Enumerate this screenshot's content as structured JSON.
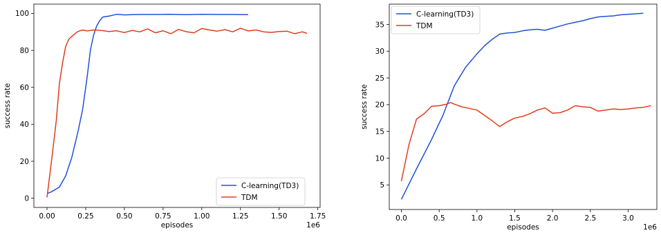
{
  "chart_data": [
    {
      "type": "line",
      "xlabel": "episodes",
      "ylabel": "success rate",
      "x_offset_label": "1e6",
      "xlim": [
        -0.085,
        1.765
      ],
      "ylim": [
        -5,
        105
      ],
      "xticks": [
        0.0,
        0.25,
        0.5,
        0.75,
        1.0,
        1.25,
        1.5,
        1.75
      ],
      "xtick_labels": [
        "0.00",
        "0.25",
        "0.50",
        "0.75",
        "1.00",
        "1.25",
        "1.50",
        "1.75"
      ],
      "yticks": [
        0,
        20,
        40,
        60,
        80,
        100
      ],
      "ytick_labels": [
        "0",
        "20",
        "40",
        "60",
        "80",
        "100"
      ],
      "grid": false,
      "legend_position": "lower-right",
      "series": [
        {
          "name": "C-learning(TD3)",
          "color": "#1f4fd8",
          "x": [
            0.0,
            0.03,
            0.08,
            0.12,
            0.16,
            0.2,
            0.23,
            0.26,
            0.28,
            0.3,
            0.32,
            0.34,
            0.36,
            0.4,
            0.45,
            0.5,
            0.55,
            0.6,
            0.7,
            0.8,
            0.9,
            1.0,
            1.1,
            1.2,
            1.3
          ],
          "y": [
            2.5,
            3.5,
            6,
            12,
            22,
            36,
            48,
            66,
            80,
            88,
            93,
            96,
            98,
            98.5,
            99.5,
            99.2,
            99.3,
            99.4,
            99.4,
            99.5,
            99.3,
            99.5,
            99.4,
            99.4,
            99.3
          ]
        },
        {
          "name": "TDM",
          "color": "#e03c1c",
          "x": [
            0.0,
            0.02,
            0.04,
            0.06,
            0.08,
            0.1,
            0.12,
            0.14,
            0.16,
            0.18,
            0.2,
            0.23,
            0.26,
            0.3,
            0.35,
            0.4,
            0.45,
            0.5,
            0.55,
            0.6,
            0.65,
            0.7,
            0.75,
            0.8,
            0.85,
            0.9,
            0.95,
            1.0,
            1.05,
            1.1,
            1.15,
            1.2,
            1.25,
            1.3,
            1.35,
            1.4,
            1.45,
            1.5,
            1.55,
            1.6,
            1.65,
            1.68
          ],
          "y": [
            0.5,
            14,
            28,
            42,
            62,
            73,
            82,
            86,
            87.5,
            89,
            90.2,
            91,
            90.5,
            91,
            90.8,
            90.2,
            90.6,
            89.6,
            90.8,
            90,
            91.6,
            89.5,
            90.6,
            89,
            91.3,
            90.1,
            89.5,
            91.8,
            91,
            90.4,
            91.2,
            90,
            92,
            90.5,
            91,
            90,
            89.7,
            90.2,
            90.4,
            89,
            90,
            89.2
          ]
        }
      ]
    },
    {
      "type": "line",
      "xlabel": "episodes",
      "ylabel": "success rate",
      "x_offset_label": "1e6",
      "xlim": [
        -0.16,
        3.38
      ],
      "ylim": [
        0.4,
        38.8
      ],
      "xticks": [
        0.0,
        0.5,
        1.0,
        1.5,
        2.0,
        2.5,
        3.0
      ],
      "xtick_labels": [
        "0.0",
        "0.5",
        "1.0",
        "1.5",
        "2.0",
        "2.5",
        "3.0"
      ],
      "yticks": [
        5,
        10,
        15,
        20,
        25,
        30,
        35
      ],
      "ytick_labels": [
        "5",
        "10",
        "15",
        "20",
        "25",
        "30",
        "35"
      ],
      "grid": false,
      "legend_position": "upper-left",
      "series": [
        {
          "name": "C-learning(TD3)",
          "color": "#1f4fd8",
          "x": [
            0.0,
            0.2,
            0.4,
            0.55,
            0.7,
            0.85,
            1.0,
            1.1,
            1.2,
            1.3,
            1.4,
            1.5,
            1.6,
            1.7,
            1.8,
            1.9,
            2.0,
            2.1,
            2.2,
            2.3,
            2.4,
            2.5,
            2.6,
            2.7,
            2.8,
            2.9,
            3.0,
            3.1,
            3.2
          ],
          "y": [
            2.3,
            8,
            13.5,
            18,
            23.5,
            27,
            29.5,
            31,
            32.2,
            33.2,
            33.4,
            33.5,
            33.8,
            34,
            34.1,
            33.9,
            34.3,
            34.7,
            35.1,
            35.4,
            35.7,
            36.1,
            36.4,
            36.5,
            36.6,
            36.8,
            36.9,
            37.0,
            37.1
          ]
        },
        {
          "name": "TDM",
          "color": "#e03c1c",
          "x": [
            0.0,
            0.1,
            0.2,
            0.3,
            0.4,
            0.5,
            0.6,
            0.65,
            0.7,
            0.8,
            0.9,
            1.0,
            1.1,
            1.2,
            1.3,
            1.4,
            1.5,
            1.6,
            1.7,
            1.8,
            1.9,
            2.0,
            2.1,
            2.2,
            2.3,
            2.4,
            2.5,
            2.6,
            2.7,
            2.8,
            2.9,
            3.0,
            3.1,
            3.2,
            3.3
          ],
          "y": [
            5.7,
            12.5,
            17.3,
            18.3,
            19.7,
            19.8,
            20.1,
            20.4,
            20.1,
            19.6,
            19.3,
            19.0,
            18.0,
            17.0,
            15.9,
            16.8,
            17.5,
            17.8,
            18.3,
            19.0,
            19.4,
            18.4,
            18.5,
            19.0,
            19.8,
            19.6,
            19.5,
            18.8,
            19.0,
            19.2,
            19.1,
            19.2,
            19.4,
            19.5,
            19.8
          ]
        }
      ]
    }
  ]
}
